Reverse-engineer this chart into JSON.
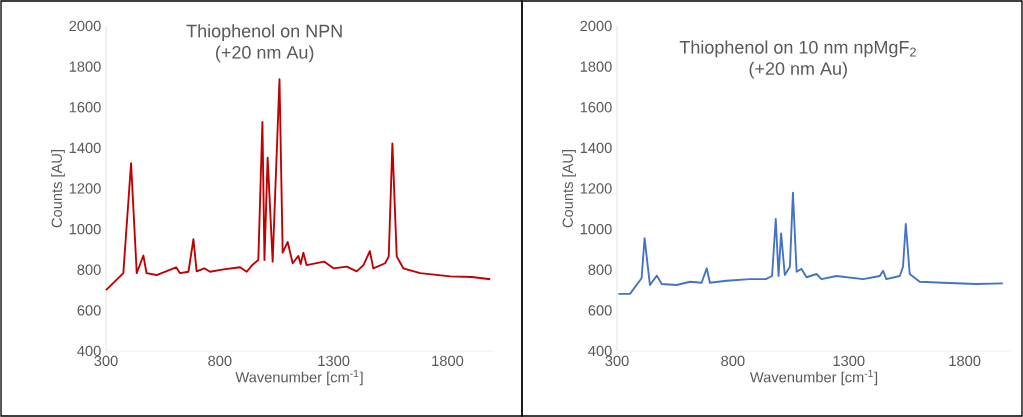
{
  "chart_data": [
    {
      "type": "line",
      "title": "Thiophenol on NPN",
      "subtitle": "(+20 nm Au)",
      "xlabel": "Wavenumber [cm$^{-1}$]",
      "ylabel": "Counts [AU]",
      "xlim": [
        300,
        2000
      ],
      "ylim": [
        400,
        2000
      ],
      "xticks": [
        300,
        800,
        1300,
        1800
      ],
      "yticks": [
        400,
        600,
        800,
        1000,
        1200,
        1400,
        1600,
        1800,
        2000
      ],
      "x": [
        300,
        376,
        410,
        435,
        464,
        478,
        522,
        608,
        625,
        662,
        684,
        698,
        732,
        757,
        816,
        889,
        918,
        944,
        969,
        987,
        996,
        1010,
        1032,
        1062,
        1076,
        1098,
        1120,
        1145,
        1155,
        1167,
        1181,
        1258,
        1299,
        1358,
        1401,
        1431,
        1459,
        1474,
        1526,
        1542,
        1558,
        1577,
        1606,
        1680,
        1812,
        1907,
        1988
      ],
      "series": [
        {
          "color": "#c00000",
          "values": [
            700,
            783,
            1324,
            783,
            870,
            783,
            774,
            812,
            783,
            790,
            950,
            792,
            807,
            790,
            802,
            812,
            790,
            825,
            848,
            1528,
            848,
            1352,
            840,
            1738,
            884,
            937,
            832,
            868,
            828,
            884,
            823,
            840,
            807,
            815,
            792,
            823,
            892,
            807,
            832,
            866,
            1422,
            866,
            807,
            783,
            767,
            764,
            753
          ]
        }
      ]
    },
    {
      "type": "line",
      "title": "Thiophenol on 10 nm npMgF$_{2}$",
      "subtitle": "(+20 nm Au)",
      "xlabel": "Wavenumber [cm$^{-1}$]",
      "ylabel": "Counts [AU]",
      "xlim": [
        300,
        2000
      ],
      "ylim": [
        400,
        2000
      ],
      "xticks": [
        300,
        800,
        1300,
        1800
      ],
      "yticks": [
        400,
        600,
        800,
        1000,
        1200,
        1400,
        1600,
        1800,
        2000
      ],
      "x": [
        306,
        356,
        406,
        419,
        442,
        472,
        493,
        557,
        615,
        665,
        687,
        701,
        773,
        873,
        942,
        969,
        985,
        997,
        1008,
        1024,
        1046,
        1059,
        1075,
        1096,
        1118,
        1161,
        1182,
        1247,
        1362,
        1434,
        1448,
        1462,
        1520,
        1534,
        1546,
        1563,
        1606,
        1706,
        1850,
        1965
      ],
      "series": [
        {
          "color": "#4472c4",
          "values": [
            681,
            681,
            758,
            955,
            725,
            771,
            730,
            725,
            741,
            736,
            807,
            736,
            746,
            754,
            754,
            769,
            1050,
            769,
            979,
            774,
            815,
            1179,
            790,
            804,
            763,
            779,
            754,
            769,
            754,
            769,
            795,
            754,
            769,
            815,
            1025,
            779,
            741,
            736,
            730,
            733
          ]
        }
      ]
    }
  ]
}
